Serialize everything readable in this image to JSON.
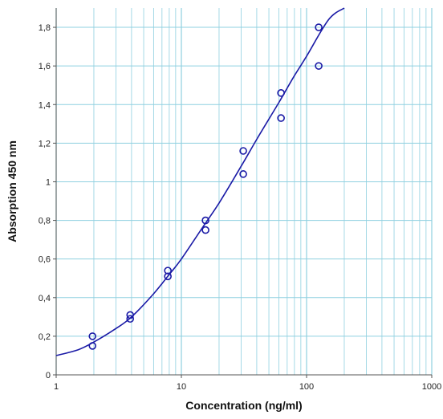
{
  "chart_data": {
    "type": "scatter",
    "xlabel": "Concentration (ng/ml)",
    "ylabel": "Absorption 450 nm",
    "x_scale": "log",
    "xlim": [
      1,
      1000
    ],
    "ylim": [
      0,
      1.9
    ],
    "grid": true,
    "x_ticks": [
      {
        "value": 1,
        "label": "1"
      },
      {
        "value": 10,
        "label": "10"
      },
      {
        "value": 100,
        "label": "100"
      },
      {
        "value": 1000,
        "label": "1000"
      }
    ],
    "y_ticks": [
      {
        "value": 0,
        "label": "0"
      },
      {
        "value": 0.2,
        "label": "0,2"
      },
      {
        "value": 0.4,
        "label": "0,4"
      },
      {
        "value": 0.6,
        "label": "0,6"
      },
      {
        "value": 0.8,
        "label": "0,8"
      },
      {
        "value": 1.0,
        "label": "1"
      },
      {
        "value": 1.2,
        "label": "1,2"
      },
      {
        "value": 1.4,
        "label": "1,4"
      },
      {
        "value": 1.6,
        "label": "1,6"
      },
      {
        "value": 1.8,
        "label": "1,8"
      }
    ],
    "series": [
      {
        "type": "scatter",
        "points": [
          {
            "x": 1.95,
            "y": 0.2
          },
          {
            "x": 1.95,
            "y": 0.15
          },
          {
            "x": 3.9,
            "y": 0.31
          },
          {
            "x": 3.9,
            "y": 0.29
          },
          {
            "x": 7.8,
            "y": 0.54
          },
          {
            "x": 7.8,
            "y": 0.51
          },
          {
            "x": 15.6,
            "y": 0.8
          },
          {
            "x": 15.6,
            "y": 0.75
          },
          {
            "x": 31.2,
            "y": 1.16
          },
          {
            "x": 31.2,
            "y": 1.04
          },
          {
            "x": 62.5,
            "y": 1.46
          },
          {
            "x": 62.5,
            "y": 1.33
          },
          {
            "x": 125,
            "y": 1.8
          },
          {
            "x": 125,
            "y": 1.6
          }
        ]
      },
      {
        "type": "line",
        "points": [
          {
            "x": 1,
            "y": 0.1
          },
          {
            "x": 1.5,
            "y": 0.13
          },
          {
            "x": 2,
            "y": 0.17
          },
          {
            "x": 3,
            "y": 0.24
          },
          {
            "x": 4,
            "y": 0.3
          },
          {
            "x": 6,
            "y": 0.42
          },
          {
            "x": 8,
            "y": 0.52
          },
          {
            "x": 10,
            "y": 0.6
          },
          {
            "x": 15,
            "y": 0.77
          },
          {
            "x": 20,
            "y": 0.89
          },
          {
            "x": 30,
            "y": 1.08
          },
          {
            "x": 40,
            "y": 1.22
          },
          {
            "x": 60,
            "y": 1.41
          },
          {
            "x": 80,
            "y": 1.55
          },
          {
            "x": 100,
            "y": 1.65
          },
          {
            "x": 150,
            "y": 1.84
          },
          {
            "x": 200,
            "y": 1.9
          }
        ]
      }
    ],
    "colors": {
      "points": "#1a1aa6",
      "curve": "#1a1aa6",
      "grid": "#8fd0e0",
      "axis": "#555555"
    }
  }
}
